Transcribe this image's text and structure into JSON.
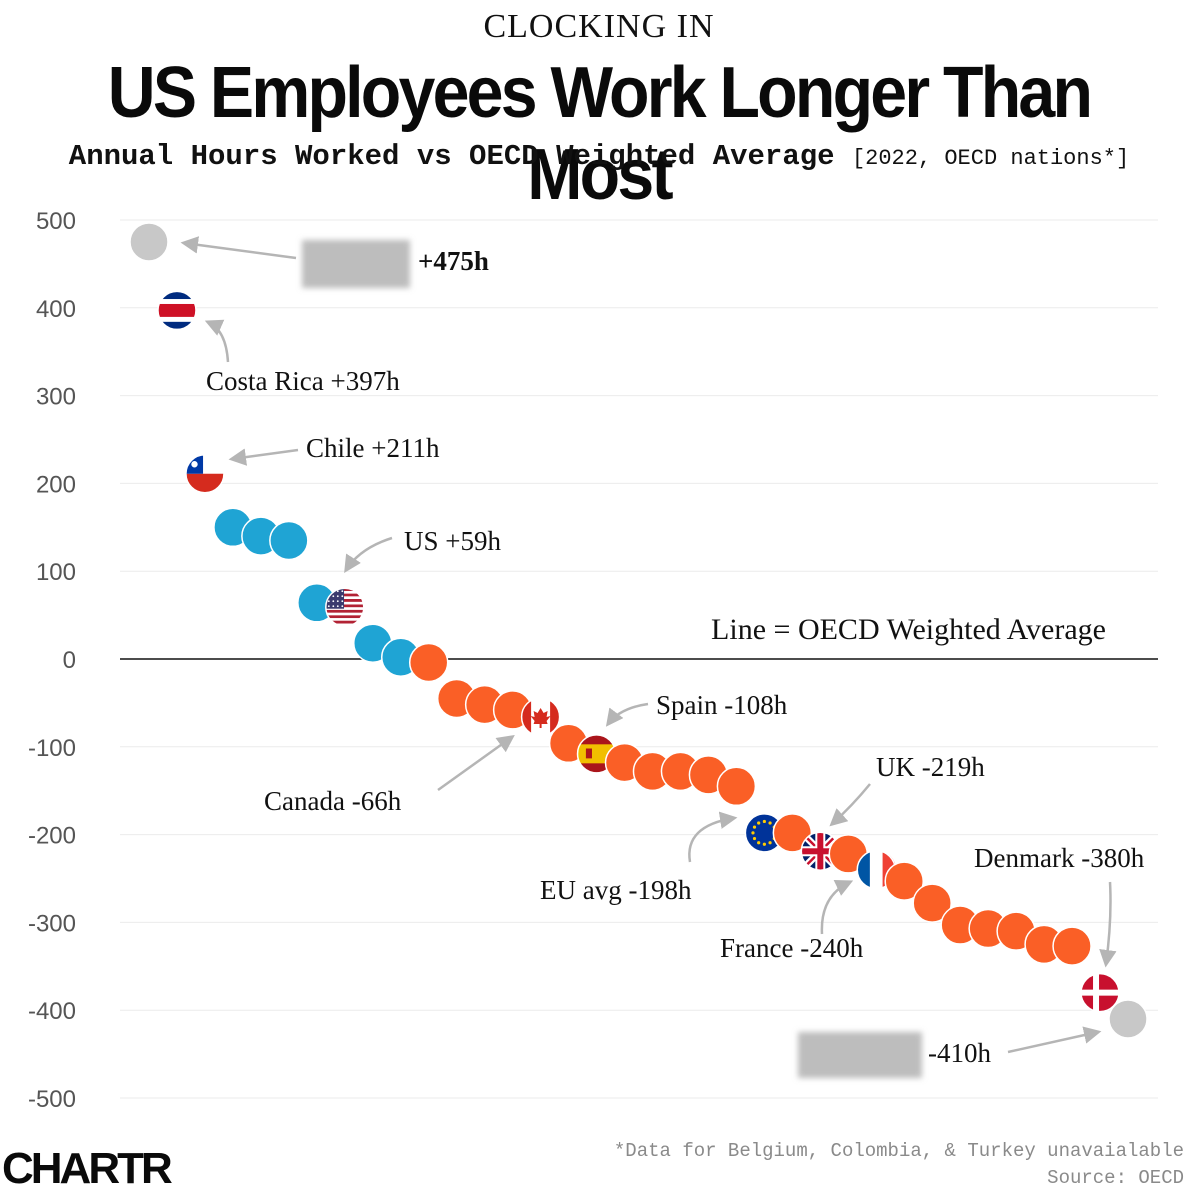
{
  "header": {
    "kicker": "CLOCKING IN",
    "title": "US Employees Work Longer Than Most",
    "subtitle_main": "Annual Hours Worked vs OECD Weighted Average",
    "subtitle_note": "[2022, OECD nations*]"
  },
  "footer": {
    "note": "*Data for Belgium, Colombia, & Turkey unavaialable",
    "source": "Source: OECD",
    "logo_text": "CHARTR"
  },
  "colors": {
    "above": "#1fa4d4",
    "below": "#fa5f26",
    "hidden": "#c8c8c8",
    "arrow": "#b5b5b5",
    "grid": "#ebebeb"
  },
  "chart_data": {
    "type": "scatter",
    "title": "Annual Hours Worked vs OECD Weighted Average",
    "xlabel": "",
    "ylabel": "",
    "ylim": [
      -500,
      500
    ],
    "yticks": [
      500,
      400,
      300,
      200,
      100,
      0,
      -100,
      -200,
      -300,
      -400,
      -500
    ],
    "baseline_label": "Line = OECD Weighted Average",
    "points": [
      {
        "id": "p1",
        "value": 475,
        "kind": "hidden"
      },
      {
        "id": "p2",
        "value": 397,
        "kind": "flag",
        "flag": "costa-rica"
      },
      {
        "id": "p3",
        "value": 211,
        "kind": "flag",
        "flag": "chile"
      },
      {
        "id": "p4",
        "value": 150,
        "kind": "above"
      },
      {
        "id": "p5",
        "value": 140,
        "kind": "above"
      },
      {
        "id": "p6",
        "value": 135,
        "kind": "above"
      },
      {
        "id": "p7",
        "value": 64,
        "kind": "above"
      },
      {
        "id": "p8",
        "value": 59,
        "kind": "flag",
        "flag": "us"
      },
      {
        "id": "p9",
        "value": 18,
        "kind": "above"
      },
      {
        "id": "p10",
        "value": 2,
        "kind": "above"
      },
      {
        "id": "p11",
        "value": -4,
        "kind": "below"
      },
      {
        "id": "p12",
        "value": -45,
        "kind": "below"
      },
      {
        "id": "p13",
        "value": -52,
        "kind": "below"
      },
      {
        "id": "p14",
        "value": -58,
        "kind": "below"
      },
      {
        "id": "p15",
        "value": -66,
        "kind": "flag",
        "flag": "canada"
      },
      {
        "id": "p16",
        "value": -96,
        "kind": "below"
      },
      {
        "id": "p17",
        "value": -108,
        "kind": "flag",
        "flag": "spain"
      },
      {
        "id": "p18",
        "value": -118,
        "kind": "below"
      },
      {
        "id": "p19",
        "value": -128,
        "kind": "below"
      },
      {
        "id": "p20",
        "value": -128,
        "kind": "below"
      },
      {
        "id": "p21",
        "value": -132,
        "kind": "below"
      },
      {
        "id": "p22",
        "value": -145,
        "kind": "below"
      },
      {
        "id": "p23",
        "value": -198,
        "kind": "flag",
        "flag": "eu"
      },
      {
        "id": "p24",
        "value": -198,
        "kind": "below"
      },
      {
        "id": "p25",
        "value": -219,
        "kind": "flag",
        "flag": "uk"
      },
      {
        "id": "p26",
        "value": -222,
        "kind": "below"
      },
      {
        "id": "p27",
        "value": -240,
        "kind": "flag",
        "flag": "france"
      },
      {
        "id": "p28",
        "value": -253,
        "kind": "below"
      },
      {
        "id": "p29",
        "value": -278,
        "kind": "below"
      },
      {
        "id": "p30",
        "value": -303,
        "kind": "below"
      },
      {
        "id": "p31",
        "value": -307,
        "kind": "below"
      },
      {
        "id": "p32",
        "value": -310,
        "kind": "below"
      },
      {
        "id": "p33",
        "value": -325,
        "kind": "below"
      },
      {
        "id": "p34",
        "value": -327,
        "kind": "below"
      },
      {
        "id": "p35",
        "value": -380,
        "kind": "flag",
        "flag": "denmark"
      },
      {
        "id": "p36",
        "value": -410,
        "kind": "hidden"
      }
    ],
    "annotations": [
      {
        "point": "p1",
        "text": "+475h",
        "bold": true
      },
      {
        "point": "p2",
        "text": "Costa Rica +397h"
      },
      {
        "point": "p3",
        "text": "Chile +211h"
      },
      {
        "point": "p8",
        "text": "US +59h"
      },
      {
        "point": "p15",
        "text": "Canada -66h"
      },
      {
        "point": "p17",
        "text": "Spain -108h"
      },
      {
        "point": "p23",
        "text": "EU avg -198h"
      },
      {
        "point": "p25",
        "text": "UK -219h"
      },
      {
        "point": "p27",
        "text": "France -240h"
      },
      {
        "point": "p35",
        "text": "Denmark -380h"
      },
      {
        "point": "p36",
        "text": "-410h"
      }
    ]
  }
}
